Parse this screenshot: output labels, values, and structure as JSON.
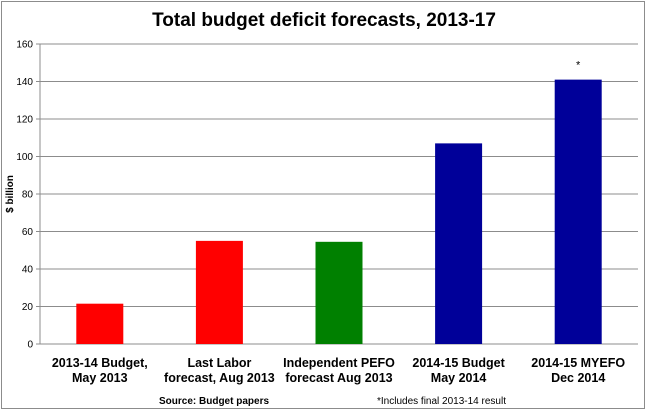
{
  "chart_data": {
    "type": "bar",
    "title": "Total budget deficit forecasts, 2013-17",
    "xlabel": "",
    "ylabel": "$ billion",
    "ylim": [
      0,
      160
    ],
    "yticks": [
      0,
      20,
      40,
      60,
      80,
      100,
      120,
      140,
      160
    ],
    "grid": true,
    "categories": [
      [
        "2013-14 Budget,",
        "May 2013"
      ],
      [
        "Last Labor",
        "forecast, Aug 2013"
      ],
      [
        "Independent PEFO",
        "forecast Aug 2013"
      ],
      [
        "2014-15 Budget",
        "May 2014"
      ],
      [
        "2014-15 MYEFO",
        "Dec 2014"
      ]
    ],
    "values": [
      21.5,
      55,
      54.5,
      107,
      141
    ],
    "colors": [
      "#ff0000",
      "#ff0000",
      "#008000",
      "#000099",
      "#000099"
    ],
    "annotations": [
      {
        "category_index": 4,
        "text": "*"
      }
    ],
    "source": "Source: Budget papers",
    "footnote": "*Includes final 2013-14 result"
  }
}
